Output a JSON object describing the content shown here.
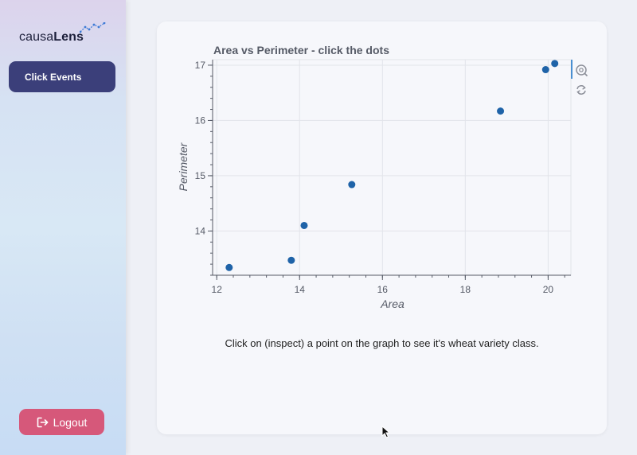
{
  "brand": {
    "name_light": "causa",
    "name_bold": "Lens"
  },
  "sidebar": {
    "nav_button_label": "Click Events",
    "logout_label": "Logout"
  },
  "main": {
    "caption": "Click on (inspect) a point on the graph to see it's wheat variety class."
  },
  "chart_data": {
    "type": "scatter",
    "title": "Area vs Perimeter - click the dots",
    "xlabel": "Area",
    "ylabel": "Perimeter",
    "xlim": [
      11.9,
      20.55
    ],
    "ylim": [
      13.2,
      17.1
    ],
    "xticks": [
      12,
      14,
      16,
      18,
      20
    ],
    "yticks": [
      14,
      15,
      16,
      17
    ],
    "grid": true,
    "point_color": "#1f63a8",
    "points": [
      {
        "x": 12.3,
        "y": 13.34
      },
      {
        "x": 13.8,
        "y": 13.47
      },
      {
        "x": 14.11,
        "y": 14.1
      },
      {
        "x": 15.26,
        "y": 14.84
      },
      {
        "x": 18.85,
        "y": 16.17
      },
      {
        "x": 19.94,
        "y": 16.92
      },
      {
        "x": 20.16,
        "y": 17.03
      }
    ]
  },
  "toolbar": {
    "tools": [
      "wheel-zoom-icon",
      "reset-icon"
    ]
  }
}
